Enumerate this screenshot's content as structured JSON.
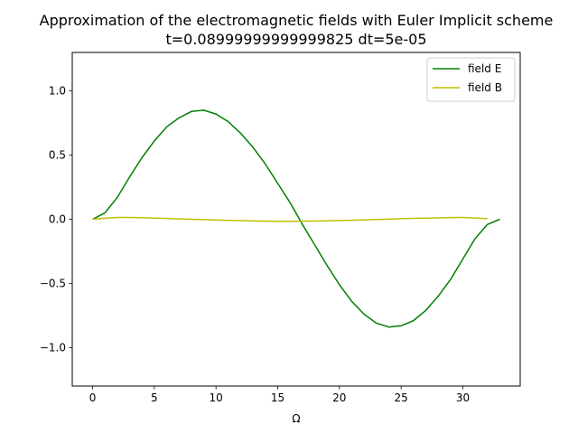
{
  "chart_data": {
    "type": "line",
    "title": "Approximation of the electromagnetic fields with Euler Implicit scheme",
    "subtitle": "t=0.08999999999999825 dt=5e-05",
    "xlabel": "Ω",
    "ylabel": "",
    "xlim": [
      -1.65,
      34.65
    ],
    "ylim": [
      -1.3,
      1.3
    ],
    "xticks": [
      0,
      5,
      10,
      15,
      20,
      25,
      30
    ],
    "xtick_labels": [
      "0",
      "5",
      "10",
      "15",
      "20",
      "25",
      "30"
    ],
    "yticks": [
      1.0,
      0.5,
      0.0,
      -0.5,
      -1.0
    ],
    "ytick_labels": [
      "1.0",
      "0.5",
      "0.0",
      "−0.5",
      "−1.0"
    ],
    "grid": false,
    "legend_position": "top-right",
    "series": [
      {
        "name": "field E",
        "color": "#008000",
        "x": [
          0,
          1,
          2,
          3,
          4,
          5,
          6,
          7,
          8,
          9,
          10,
          11,
          12,
          13,
          14,
          15,
          16,
          17,
          18,
          19,
          20,
          21,
          22,
          23,
          24,
          25,
          26,
          27,
          28,
          29,
          30,
          31,
          32,
          33
        ],
        "y": [
          0.0,
          0.05,
          0.17,
          0.33,
          0.48,
          0.61,
          0.72,
          0.79,
          0.84,
          0.85,
          0.82,
          0.76,
          0.67,
          0.56,
          0.43,
          0.28,
          0.13,
          -0.04,
          -0.2,
          -0.36,
          -0.51,
          -0.64,
          -0.74,
          -0.81,
          -0.84,
          -0.83,
          -0.79,
          -0.71,
          -0.6,
          -0.47,
          -0.31,
          -0.15,
          -0.04,
          0.0
        ]
      },
      {
        "name": "field B",
        "color": "#bfbf00",
        "x": [
          0,
          1,
          2,
          3,
          4,
          5,
          6,
          7,
          8,
          9,
          10,
          11,
          12,
          13,
          14,
          15,
          16,
          17,
          18,
          19,
          20,
          21,
          22,
          23,
          24,
          25,
          26,
          27,
          28,
          29,
          30,
          31,
          32
        ],
        "y": [
          0.0,
          0.008,
          0.014,
          0.014,
          0.012,
          0.009,
          0.006,
          0.003,
          0.0,
          -0.003,
          -0.006,
          -0.009,
          -0.011,
          -0.013,
          -0.015,
          -0.016,
          -0.016,
          -0.015,
          -0.014,
          -0.012,
          -0.01,
          -0.008,
          -0.005,
          -0.002,
          0.001,
          0.004,
          0.007,
          0.009,
          0.011,
          0.013,
          0.014,
          0.01,
          0.004
        ]
      }
    ]
  }
}
